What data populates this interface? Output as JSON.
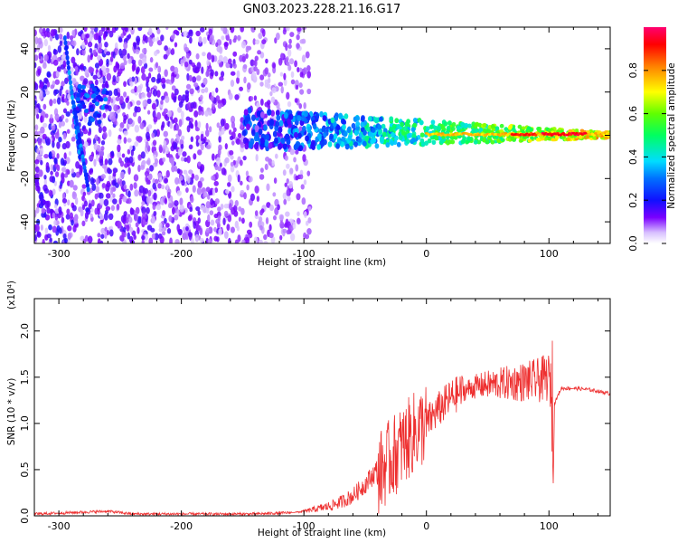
{
  "title": "GN03.2023.228.21.16.G17",
  "colors": {
    "snr_line": "#ee3030",
    "background": "#ffffff",
    "frame": "#000000"
  },
  "chart_data": [
    {
      "type": "heatmap",
      "xlabel": "Height of straight line (km)",
      "ylabel": "Frequency (Hz)",
      "xlim": [
        -320,
        150
      ],
      "ylim": [
        -50,
        50
      ],
      "x_ticks": [
        -300,
        -200,
        -100,
        0,
        100
      ],
      "y_ticks": [
        -40,
        -20,
        0,
        20,
        40
      ],
      "colorbar": {
        "label": "Normalized spectral amplitude",
        "range": [
          0,
          1
        ],
        "ticks": [
          "0.0",
          "0.2",
          "0.4",
          "0.6",
          "0.8"
        ],
        "colormap": "rainbow (white/violet to red)"
      },
      "description_points": [
        {
          "x": -300,
          "f": 0,
          "amp": 0.05
        },
        {
          "x": -200,
          "f": 0,
          "amp": 0.08
        },
        {
          "x": -140,
          "f": 3,
          "amp": 0.25
        },
        {
          "x": -100,
          "f": 2,
          "amp": 0.35
        },
        {
          "x": -60,
          "f": 2,
          "amp": 0.45
        },
        {
          "x": -20,
          "f": 1,
          "amp": 0.6
        },
        {
          "x": 0,
          "f": 0,
          "amp": 0.75
        },
        {
          "x": 50,
          "f": 1,
          "amp": 0.8
        },
        {
          "x": 100,
          "f": 0,
          "amp": 0.95
        },
        {
          "x": 150,
          "f": 0,
          "amp": 0.85
        }
      ]
    },
    {
      "type": "line",
      "xlabel": "Height of straight line (km)",
      "ylabel": "SNR (10 * v/v)",
      "y_multiplier": "(x10⁴)",
      "xlim": [
        -320,
        150
      ],
      "ylim": [
        0,
        2.35
      ],
      "x_ticks": [
        -300,
        -200,
        -100,
        0,
        100
      ],
      "y_ticks": [
        "0.0",
        "0.5",
        "1.0",
        "1.5",
        "2.0"
      ],
      "series": [
        {
          "x": [
            -320,
            -300,
            -280,
            -260,
            -240,
            -220,
            -200,
            -180,
            -160,
            -140,
            -120,
            -100,
            -90,
            -80,
            -70,
            -60,
            -50,
            -40,
            -30,
            -20,
            -10,
            0,
            10,
            20,
            30,
            40,
            50,
            60,
            70,
            80,
            90,
            100,
            104,
            110,
            120,
            130,
            140,
            150
          ],
          "y": [
            0.02,
            0.03,
            0.04,
            0.05,
            0.02,
            0.02,
            0.02,
            0.02,
            0.02,
            0.02,
            0.03,
            0.04,
            0.06,
            0.08,
            0.12,
            0.18,
            0.3,
            0.45,
            0.6,
            0.75,
            0.9,
            1.0,
            1.15,
            1.28,
            1.35,
            1.4,
            1.42,
            1.43,
            1.44,
            1.45,
            1.46,
            1.5,
            1.2,
            1.38,
            1.38,
            1.37,
            1.35,
            1.32
          ]
        }
      ]
    }
  ]
}
